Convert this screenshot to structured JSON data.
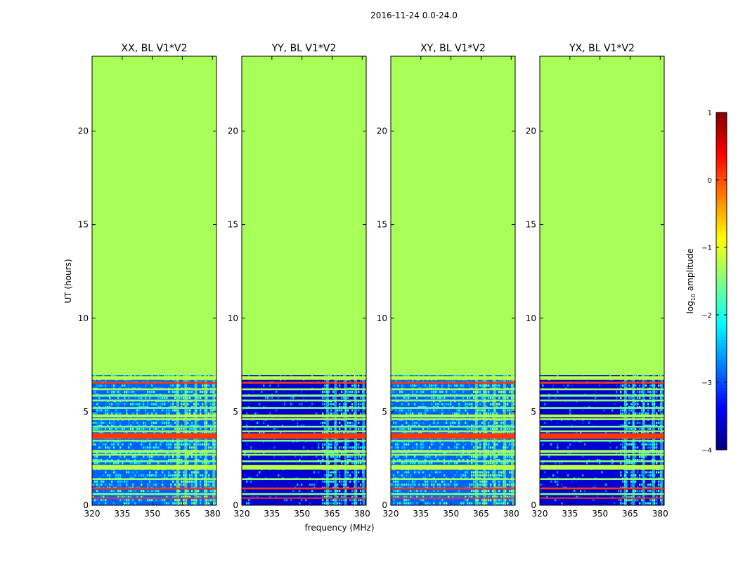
{
  "chart_data": {
    "type": "heatmap",
    "suptitle": "2016-11-24 0.0-24.0",
    "ylabel": "UT (hours)",
    "xlabel": "frequency (MHz)",
    "xlim": [
      320,
      382
    ],
    "ylim": [
      0,
      24
    ],
    "xticks": [
      320,
      335,
      350,
      365,
      380
    ],
    "yticks": [
      0,
      5,
      10,
      15,
      20
    ],
    "data_end_hours": 6.95,
    "fill_level_log10": -1.3,
    "rfi_band_mhz": [
      360,
      381
    ],
    "panels": [
      {
        "title": "XX, BL V1*V2",
        "bg_level": -2.9,
        "rfi_level": -2.0
      },
      {
        "title": "YY, BL V1*V2",
        "bg_level": -3.6,
        "rfi_level": -2.4
      },
      {
        "title": "XY, BL V1*V2",
        "bg_level": -2.9,
        "rfi_level": -2.0
      },
      {
        "title": "YX, BL V1*V2",
        "bg_level": -3.6,
        "rfi_level": -2.4
      }
    ],
    "bands": [
      {
        "t0": 6.7,
        "t1": 6.9,
        "level": -1.2
      },
      {
        "t0": 6.5,
        "t1": 6.6,
        "level": 0.1
      },
      {
        "t0": 6.15,
        "t1": 6.25,
        "level": -1.3
      },
      {
        "t0": 5.8,
        "t1": 5.92,
        "level": -1.5
      },
      {
        "t0": 5.55,
        "t1": 5.65,
        "level": -1.4
      },
      {
        "t0": 5.15,
        "t1": 5.25,
        "level": -1.5
      },
      {
        "t0": 4.7,
        "t1": 4.85,
        "level": -1.2
      },
      {
        "t0": 4.55,
        "t1": 4.65,
        "level": -1.3
      },
      {
        "t0": 4.15,
        "t1": 4.25,
        "level": -1.5
      },
      {
        "t0": 3.9,
        "t1": 4.0,
        "level": -1.4
      },
      {
        "t0": 3.55,
        "t1": 3.85,
        "level": 0.1
      },
      {
        "t0": 3.4,
        "t1": 3.5,
        "level": -1.6
      },
      {
        "t0": 2.8,
        "t1": 2.95,
        "level": -1.3
      },
      {
        "t0": 2.65,
        "t1": 2.75,
        "level": -1.4
      },
      {
        "t0": 2.3,
        "t1": 2.4,
        "level": -1.5
      },
      {
        "t0": 1.9,
        "t1": 2.15,
        "level": -1.2
      },
      {
        "t0": 1.35,
        "t1": 1.45,
        "level": -1.4
      },
      {
        "t0": 0.85,
        "t1": 0.95,
        "level": 0.1
      },
      {
        "t0": 0.55,
        "t1": 0.65,
        "level": -1.5
      },
      {
        "t0": 0.35,
        "t1": 0.42,
        "level": 0.1
      }
    ],
    "colorbar": {
      "label": "log10 amplitude",
      "label_main": "log",
      "label_sub": "10",
      "label_rest": " amplitude",
      "range": [
        -4,
        1
      ],
      "ticks": [
        "1",
        "0",
        "−1",
        "−2",
        "−3",
        "−4"
      ],
      "tick_values": [
        1,
        0,
        -1,
        -2,
        -3,
        -4
      ],
      "colormap": "jet"
    }
  }
}
